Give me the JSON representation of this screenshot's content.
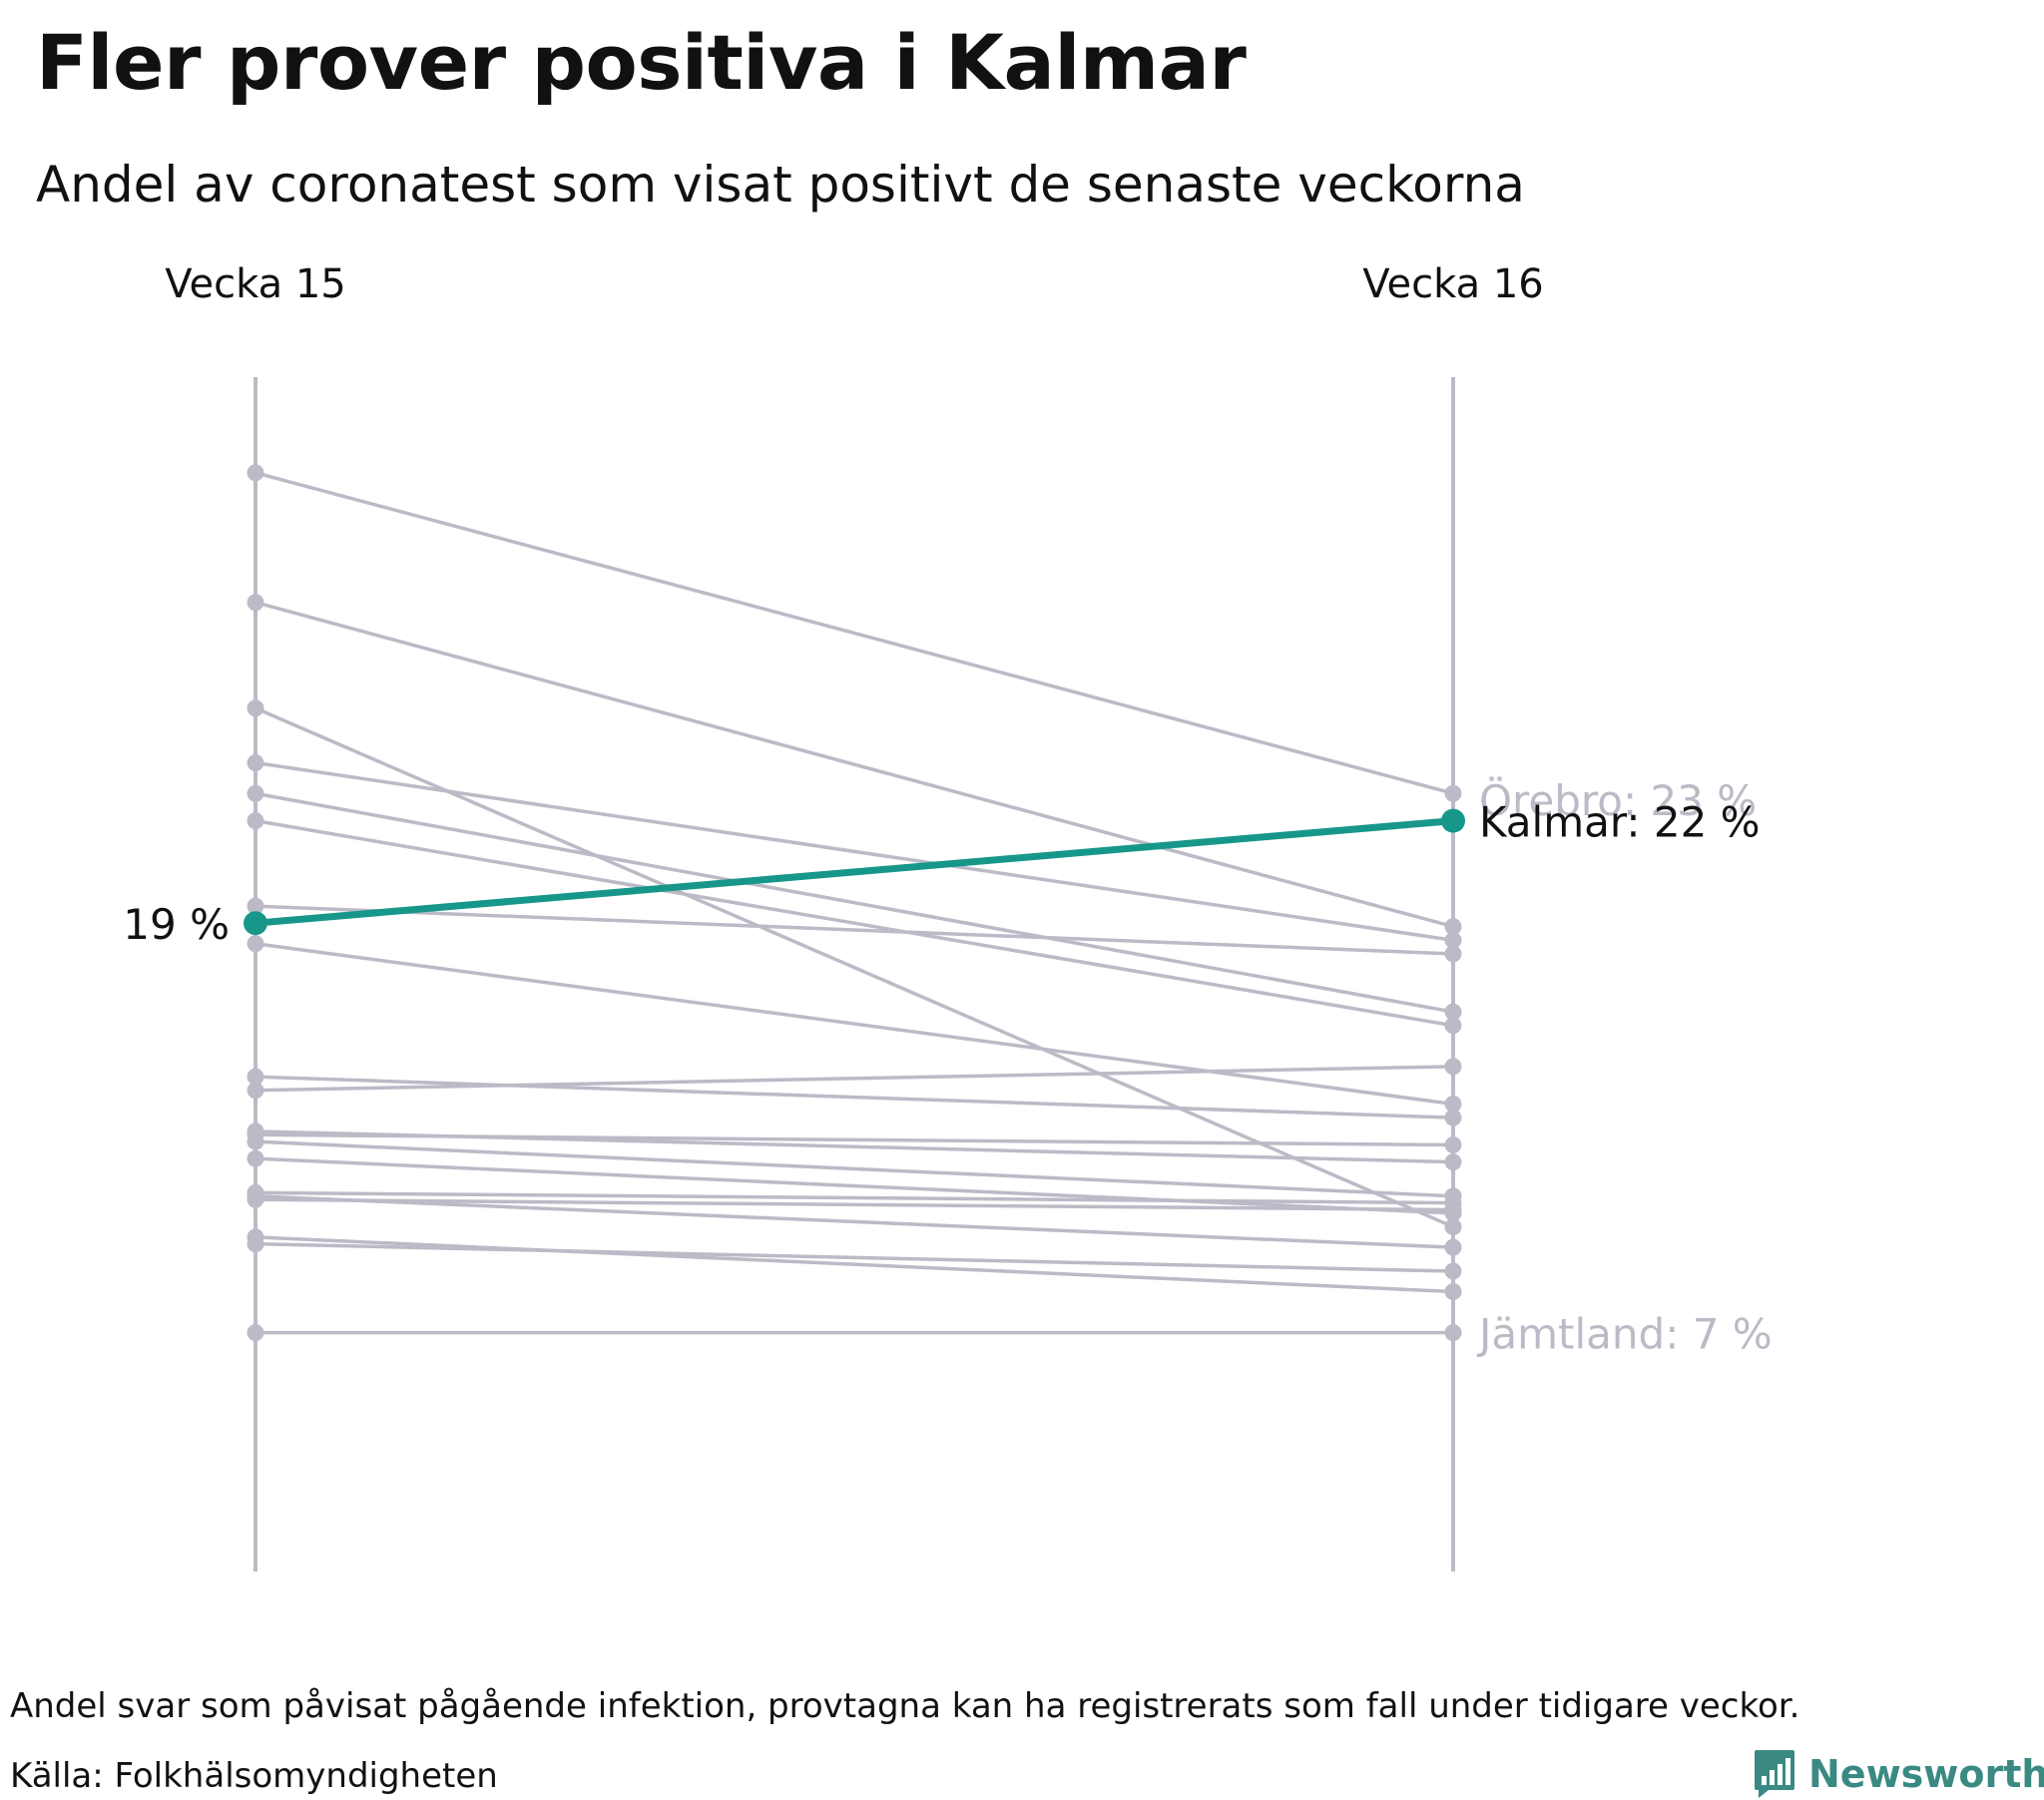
{
  "title": "Fler prover positiva i Kalmar",
  "subtitle": "Andel av coronatest som visat positivt de senaste veckorna",
  "footnote": "Andel svar som påvisat pågående infektion, provtagna kan ha registrerats som fall under tidigare veckor.",
  "source": "Källa: Folkhälsomyndigheten",
  "brand": "Newsworthy",
  "colors": {
    "highlight": "#17978a",
    "others": "#bcbac6",
    "text": "#111111",
    "brand": "#3a8a83"
  },
  "chart_data": {
    "type": "line",
    "x": [
      "Vecka 15",
      "Vecka 16"
    ],
    "ylim": [
      0,
      35
    ],
    "grid": false,
    "legend": "none",
    "highlight": {
      "name": "Kalmar",
      "values": [
        19,
        22
      ]
    },
    "labels": {
      "left_value": "19 %",
      "kalmar": "Kalmar: 22 %",
      "top": "Örebro: 23 %",
      "bottom": "Jämtland: 7 %"
    },
    "series": [
      {
        "name": "Örebro",
        "values": [
          32.2,
          22.8
        ]
      },
      {
        "values": [
          28.4,
          18.9
        ]
      },
      {
        "values": [
          25.3,
          10.1
        ]
      },
      {
        "values": [
          23.7,
          18.5
        ]
      },
      {
        "values": [
          22.8,
          16.4
        ]
      },
      {
        "values": [
          22.0,
          16.0
        ]
      },
      {
        "values": [
          19.5,
          18.1
        ]
      },
      {
        "values": [
          18.4,
          13.7
        ]
      },
      {
        "values": [
          14.5,
          13.3
        ]
      },
      {
        "values": [
          14.1,
          14.8
        ]
      },
      {
        "values": [
          12.9,
          12.0
        ]
      },
      {
        "values": [
          12.8,
          12.5
        ]
      },
      {
        "values": [
          12.6,
          11.0
        ]
      },
      {
        "values": [
          12.1,
          10.5
        ]
      },
      {
        "values": [
          11.1,
          10.8
        ]
      },
      {
        "values": [
          11.0,
          9.5
        ]
      },
      {
        "values": [
          10.9,
          10.6
        ]
      },
      {
        "values": [
          9.8,
          8.2
        ]
      },
      {
        "values": [
          9.6,
          8.8
        ]
      },
      {
        "name": "Jämtland",
        "values": [
          7.0,
          7.0
        ]
      }
    ]
  }
}
